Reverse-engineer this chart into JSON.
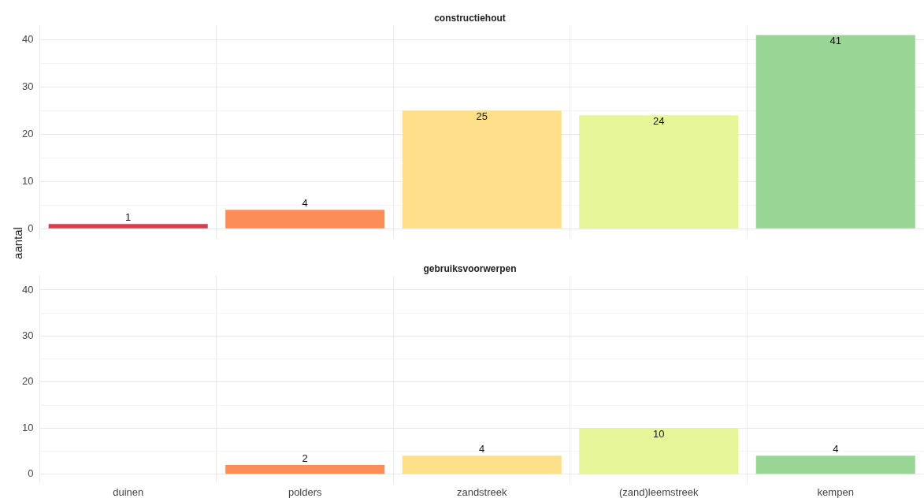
{
  "chart_data": [
    {
      "type": "bar",
      "title": "constructiehout",
      "ylabel": "aantal",
      "categories": [
        null,
        null,
        null,
        null,
        null
      ],
      "values": [
        1,
        4,
        25,
        24,
        41
      ],
      "colors": [
        "#d53e4f",
        "#fc8d59",
        "#fee08b",
        "#e6f598",
        "#99d594"
      ],
      "ylim": [
        -2,
        43
      ],
      "yticks": [
        0,
        {
          "value": 5,
          "label": null
        },
        10,
        {
          "value": 15,
          "label": null
        },
        20,
        {
          "value": 25,
          "label": null
        },
        30,
        {
          "value": 35,
          "label": null
        },
        40
      ],
      "grid": true,
      "data_labels": true,
      "tick_labels": "y"
    },
    {
      "type": "bar",
      "title": "gebruiksvoorwerpen",
      "categories": [
        "duinen",
        "polders",
        "zandstreek",
        "(zand)leemstreek",
        "kempen"
      ],
      "values": [
        0,
        2,
        4,
        10,
        4
      ],
      "value_labels": [
        null,
        "2",
        "4",
        "10",
        "4"
      ],
      "colors": [
        "#d53e4f",
        "#fc8d59",
        "#fee08b",
        "#e6f598",
        "#99d594"
      ],
      "ylim": [
        -2,
        43
      ],
      "yticks": [
        0,
        {
          "value": 5,
          "label": null
        },
        10,
        {
          "value": 15,
          "label": null
        },
        20,
        {
          "value": 25,
          "label": null
        },
        30,
        {
          "value": 35,
          "label": null
        },
        40
      ],
      "grid": true
    }
  ]
}
